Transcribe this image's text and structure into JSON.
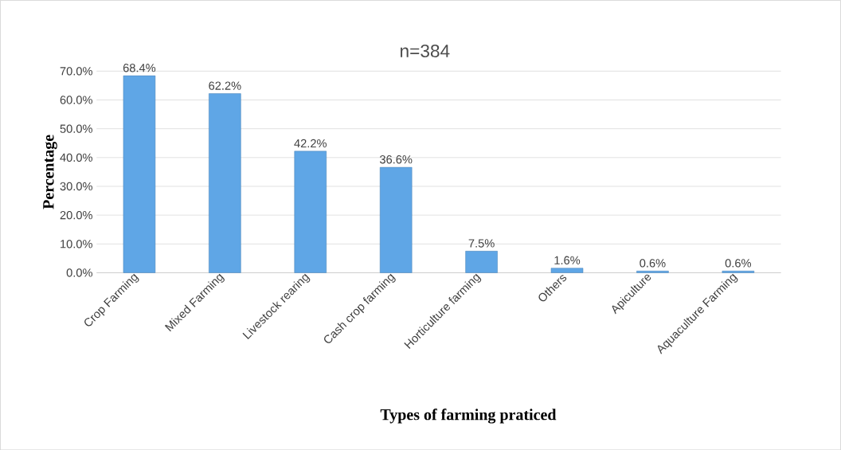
{
  "chart_data": {
    "type": "bar",
    "title": "n=384",
    "xlabel": "Types of farming praticed",
    "ylabel": "Percentage",
    "categories": [
      "Crop Farming",
      "Mixed Farming",
      "Livestock rearing",
      "Cash crop farming",
      "Horticulture farming",
      "Others",
      "Apiculture",
      "Aquaculture Farming"
    ],
    "values": [
      68.4,
      62.2,
      42.2,
      36.6,
      7.5,
      1.6,
      0.6,
      0.6
    ],
    "value_labels": [
      "68.4%",
      "62.2%",
      "42.2%",
      "36.6%",
      "7.5%",
      "1.6%",
      "0.6%",
      "0.6%"
    ],
    "color": "#5fa6e6",
    "ylim": [
      0,
      70
    ],
    "yticks": [
      {
        "value": 0,
        "label": "0.0%"
      },
      {
        "value": 10,
        "label": "10.0%"
      },
      {
        "value": 20,
        "label": "20.0%"
      },
      {
        "value": 30,
        "label": "30.0%"
      },
      {
        "value": 40,
        "label": "40.0%"
      },
      {
        "value": 50,
        "label": "50.0%"
      },
      {
        "value": 60,
        "label": "60.0%"
      },
      {
        "value": 70,
        "label": "70.0%"
      }
    ],
    "grid": "y"
  }
}
